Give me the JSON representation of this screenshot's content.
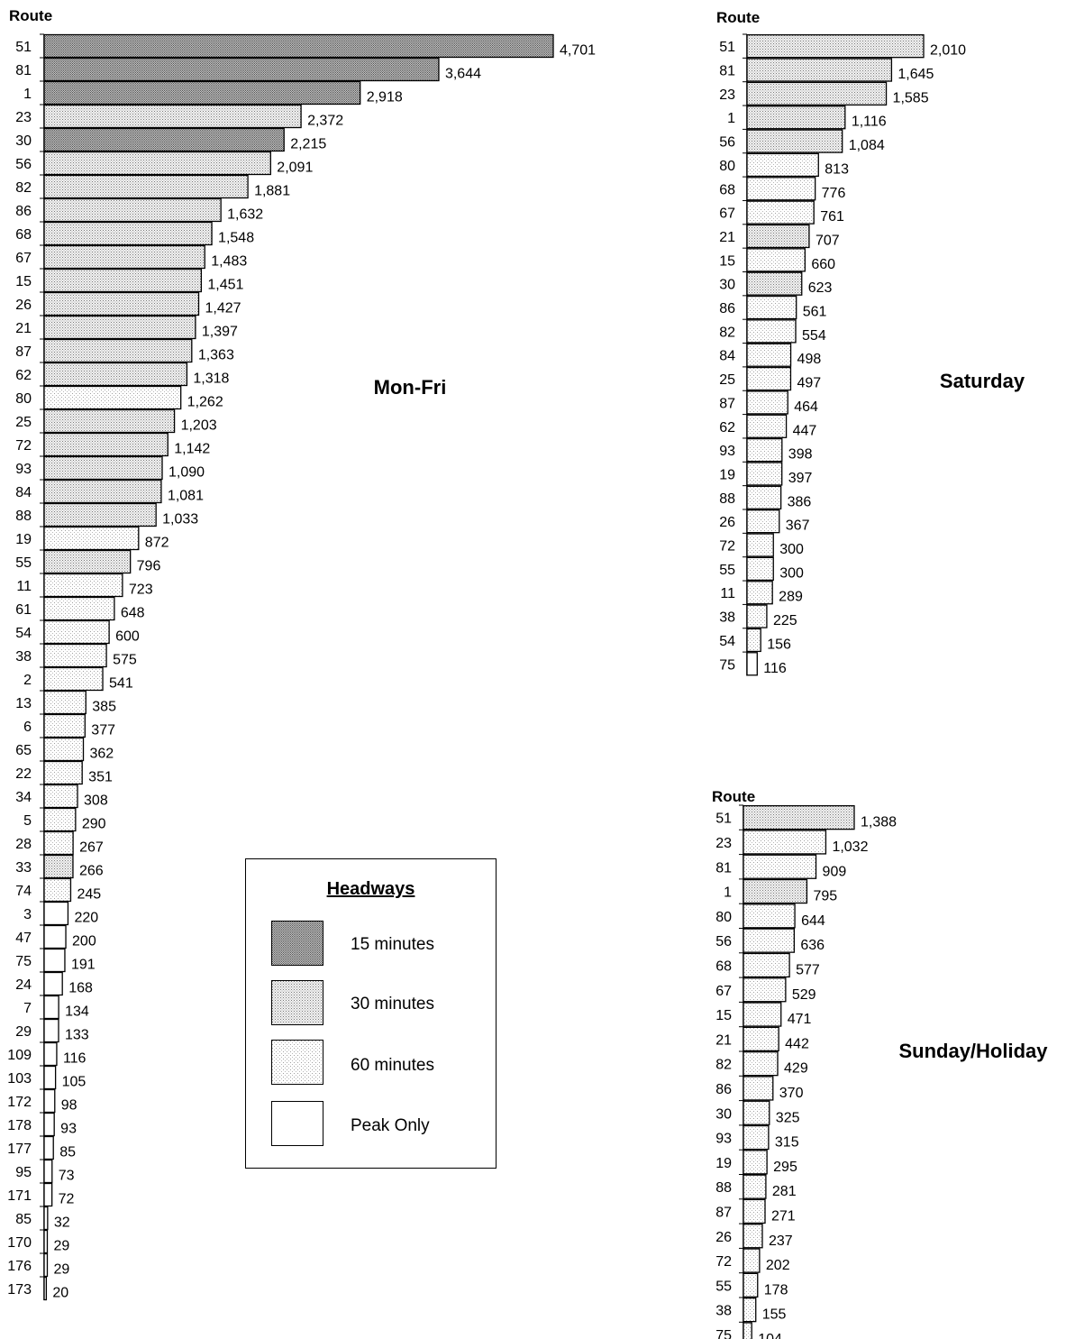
{
  "colors": {
    "15 minutes": "dense-dot",
    "30 minutes": "medium-dot",
    "60 minutes": "sparse-dot",
    "Peak Only": "#ffffff"
  },
  "legend": {
    "title": "Headways",
    "items": [
      {
        "label": "15 minutes",
        "pattern": "dense-dot"
      },
      {
        "label": "30 minutes",
        "pattern": "medium-dot"
      },
      {
        "label": "60 minutes",
        "pattern": "sparse-dot"
      },
      {
        "label": "Peak Only",
        "pattern": "none"
      }
    ]
  },
  "chart_data": [
    {
      "type": "bar",
      "orientation": "horizontal",
      "title": "Mon-Fri",
      "axis_label": "Route",
      "categories": [
        "51",
        "81",
        "1",
        "23",
        "30",
        "56",
        "82",
        "86",
        "68",
        "67",
        "15",
        "26",
        "21",
        "87",
        "62",
        "80",
        "25",
        "72",
        "93",
        "84",
        "88",
        "19",
        "55",
        "11",
        "61",
        "54",
        "38",
        "2",
        "13",
        "6",
        "65",
        "22",
        "34",
        "5",
        "28",
        "33",
        "74",
        "3",
        "47",
        "75",
        "24",
        "7",
        "29",
        "109",
        "103",
        "172",
        "178",
        "177",
        "95",
        "171",
        "85",
        "170",
        "176",
        "173"
      ],
      "values": [
        4701,
        3644,
        2918,
        2372,
        2215,
        2091,
        1881,
        1632,
        1548,
        1483,
        1451,
        1427,
        1397,
        1363,
        1318,
        1262,
        1203,
        1142,
        1090,
        1081,
        1033,
        872,
        796,
        723,
        648,
        600,
        575,
        541,
        385,
        377,
        362,
        351,
        308,
        290,
        267,
        266,
        245,
        220,
        200,
        191,
        168,
        134,
        133,
        116,
        105,
        98,
        93,
        85,
        73,
        72,
        32,
        29,
        29,
        20
      ],
      "value_labels": [
        "4,701",
        "3,644",
        "2,918",
        "2,372",
        "2,215",
        "2,091",
        "1,881",
        "1,632",
        "1,548",
        "1,483",
        "1,451",
        "1,427",
        "1,397",
        "1,363",
        "1,318",
        "1,262",
        "1,203",
        "1,142",
        "1,090",
        "1,081",
        "1,033",
        "872",
        "796",
        "723",
        "648",
        "600",
        "575",
        "541",
        "385",
        "377",
        "362",
        "351",
        "308",
        "290",
        "267",
        "266",
        "245",
        "220",
        "200",
        "191",
        "168",
        "134",
        "133",
        "116",
        "105",
        "98",
        "93",
        "85",
        "73",
        "72",
        "32",
        "29",
        "29",
        "20"
      ],
      "headways": [
        "15 minutes",
        "15 minutes",
        "15 minutes",
        "30 minutes",
        "15 minutes",
        "30 minutes",
        "30 minutes",
        "30 minutes",
        "30 minutes",
        "30 minutes",
        "30 minutes",
        "30 minutes",
        "30 minutes",
        "30 minutes",
        "30 minutes",
        "60 minutes",
        "30 minutes",
        "30 minutes",
        "30 minutes",
        "30 minutes",
        "30 minutes",
        "60 minutes",
        "30 minutes",
        "60 minutes",
        "60 minutes",
        "60 minutes",
        "60 minutes",
        "60 minutes",
        "60 minutes",
        "60 minutes",
        "60 minutes",
        "60 minutes",
        "60 minutes",
        "60 minutes",
        "60 minutes",
        "30 minutes",
        "60 minutes",
        "Peak Only",
        "Peak Only",
        "Peak Only",
        "Peak Only",
        "Peak Only",
        "Peak Only",
        "Peak Only",
        "Peak Only",
        "Peak Only",
        "Peak Only",
        "Peak Only",
        "Peak Only",
        "Peak Only",
        "Peak Only",
        "Peak Only",
        "Peak Only",
        "Peak Only"
      ]
    },
    {
      "type": "bar",
      "orientation": "horizontal",
      "title": "Saturday",
      "axis_label": "Route",
      "categories": [
        "51",
        "81",
        "23",
        "1",
        "56",
        "80",
        "68",
        "67",
        "21",
        "15",
        "30",
        "86",
        "82",
        "84",
        "25",
        "87",
        "62",
        "93",
        "19",
        "88",
        "26",
        "72",
        "55",
        "11",
        "38",
        "54",
        "75"
      ],
      "values": [
        2010,
        1645,
        1585,
        1116,
        1084,
        813,
        776,
        761,
        707,
        660,
        623,
        561,
        554,
        498,
        497,
        464,
        447,
        398,
        397,
        386,
        367,
        300,
        300,
        289,
        225,
        156,
        116
      ],
      "value_labels": [
        "2,010",
        "1,645",
        "1,585",
        "1,116",
        "1,084",
        "813",
        "776",
        "761",
        "707",
        "660",
        "623",
        "561",
        "554",
        "498",
        "497",
        "464",
        "447",
        "398",
        "397",
        "386",
        "367",
        "300",
        "300",
        "289",
        "225",
        "156",
        "116"
      ],
      "headways": [
        "30 minutes",
        "30 minutes",
        "30 minutes",
        "30 minutes",
        "30 minutes",
        "60 minutes",
        "60 minutes",
        "60 minutes",
        "30 minutes",
        "60 minutes",
        "30 minutes",
        "60 minutes",
        "60 minutes",
        "60 minutes",
        "60 minutes",
        "60 minutes",
        "60 minutes",
        "60 minutes",
        "60 minutes",
        "60 minutes",
        "60 minutes",
        "60 minutes",
        "60 minutes",
        "60 minutes",
        "60 minutes",
        "60 minutes",
        "Peak Only"
      ]
    },
    {
      "type": "bar",
      "orientation": "horizontal",
      "title": "Sunday/Holiday",
      "axis_label": "Route",
      "categories": [
        "51",
        "23",
        "81",
        "1",
        "80",
        "56",
        "68",
        "67",
        "15",
        "21",
        "82",
        "86",
        "30",
        "93",
        "19",
        "88",
        "87",
        "26",
        "72",
        "55",
        "38",
        "75"
      ],
      "values": [
        1388,
        1032,
        909,
        795,
        644,
        636,
        577,
        529,
        471,
        442,
        429,
        370,
        325,
        315,
        295,
        281,
        271,
        237,
        202,
        178,
        155,
        104
      ],
      "value_labels": [
        "1,388",
        "1,032",
        "909",
        "795",
        "644",
        "636",
        "577",
        "529",
        "471",
        "442",
        "429",
        "370",
        "325",
        "315",
        "295",
        "281",
        "271",
        "237",
        "202",
        "178",
        "155",
        "104"
      ],
      "headways": [
        "30 minutes",
        "60 minutes",
        "60 minutes",
        "30 minutes",
        "60 minutes",
        "60 minutes",
        "60 minutes",
        "60 minutes",
        "60 minutes",
        "60 minutes",
        "60 minutes",
        "60 minutes",
        "60 minutes",
        "60 minutes",
        "60 minutes",
        "60 minutes",
        "60 minutes",
        "60 minutes",
        "60 minutes",
        "60 minutes",
        "60 minutes",
        "60 minutes"
      ]
    }
  ]
}
